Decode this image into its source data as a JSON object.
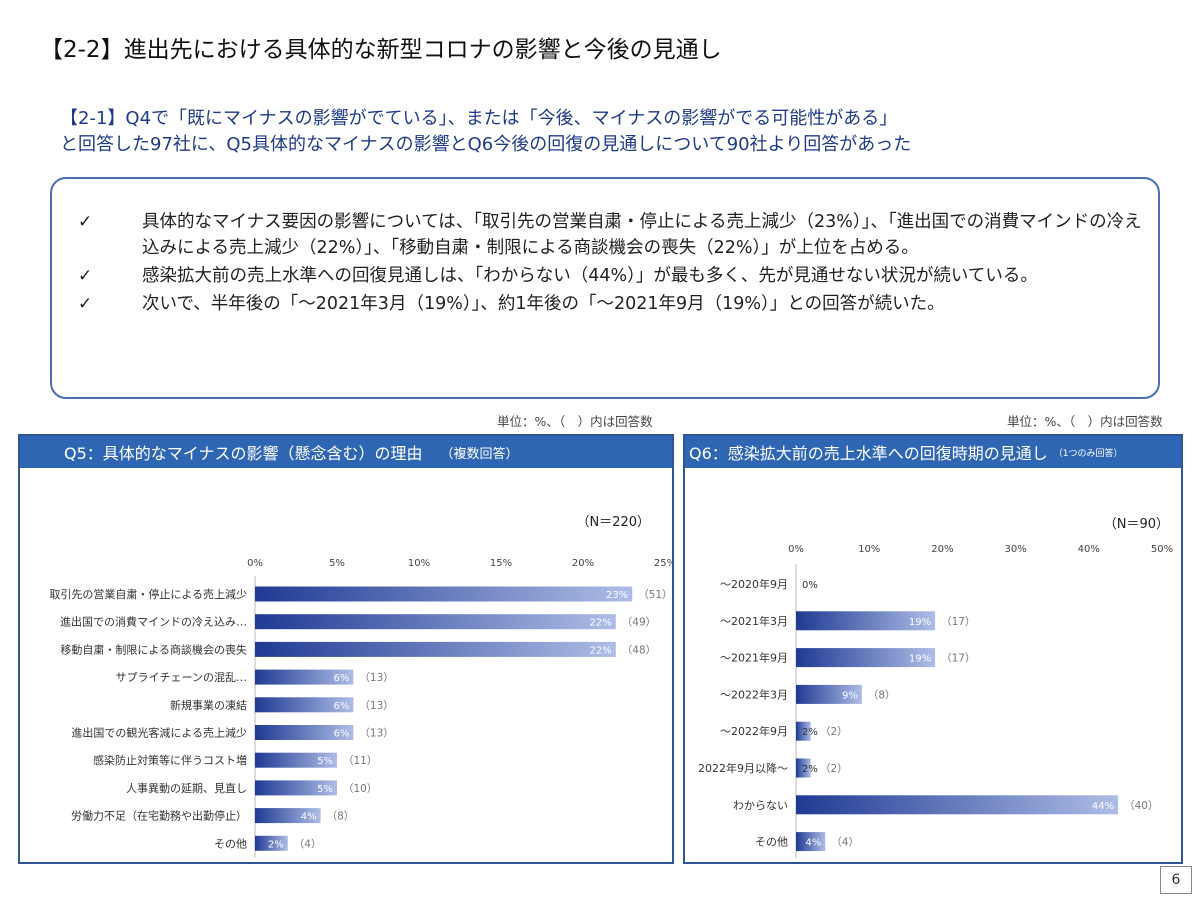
{
  "page": {
    "title": "【2-2】進出先における具体的な新型コロナの影響と今後の見通し",
    "subtitle_line1": "【2-1】Q4で「既にマイナスの影響がでている」、または「今後、マイナスの影響がでる可能性がある」",
    "subtitle_line2": "と回答した97社に、Q5具体的なマイナスの影響とQ6今後の回復の見通しについて90社より回答があった",
    "page_number": "6"
  },
  "summary": {
    "check_mark": "✓",
    "bullets": [
      "具体的なマイナス要因の影響については、「取引先の営業自粛・停止による売上減少（23%）」、「進出国での消費マインドの冷え込みによる売上減少（22%）」、「移動自粛・制限による商談機会の喪失（22%）」が上位を占める。",
      "感染拡大前の売上水準への回復見通しは、「わからない（44%）」が最も多く、先が見通せない状況が続いている。",
      "次いで、半年後の「～2021年3月（19%）」、約1年後の「～2021年9月（19%）」との回答が続いた。"
    ]
  },
  "colors": {
    "bar_dark": "#1f3a93",
    "bar_light": "#aebde6",
    "header_bg": "#2f66b3",
    "border": "#2f5597"
  },
  "chart_data": [
    {
      "type": "bar",
      "orientation": "horizontal",
      "unit_note": "単位：%、（　）内は回答数",
      "title": "Q5：具体的なマイナスの影響（懸念含む）の理由",
      "title_note": "（複数回答）",
      "n_label": "（N＝220）",
      "categories": [
        "取引先の営業自粛・停止による売上減少",
        "進出国での消費マインドの冷え込み…",
        "移動自粛・制限による商談機会の喪失",
        "サプライチェーンの混乱…",
        "新規事業の凍結",
        "進出国での観光客減による売上減少",
        "感染防止対策等に伴うコスト増",
        "人事異動の延期、見直し",
        "労働力不足（在宅勤務や出勤停止）",
        "その他"
      ],
      "values": [
        23,
        22,
        22,
        6,
        6,
        6,
        5,
        5,
        4,
        2
      ],
      "value_labels": [
        "23%",
        "22%",
        "22%",
        "6%",
        "6%",
        "6%",
        "5%",
        "5%",
        "4%",
        "2%"
      ],
      "counts": [
        "（51）",
        "（49）",
        "（48）",
        "（13）",
        "（13）",
        "（13）",
        "（11）",
        "（10）",
        "（8）",
        "（4）"
      ],
      "xlim": [
        0,
        25
      ],
      "ticks": [
        "0%",
        "5%",
        "10%",
        "15%",
        "20%",
        "25%"
      ]
    },
    {
      "type": "bar",
      "orientation": "horizontal",
      "unit_note": "単位：%、（　）内は回答数",
      "title": "Q6：感染拡大前の売上水準への回復時期の見通し",
      "title_note": "（1つのみ回答）",
      "n_label": "（N＝90）",
      "categories": [
        "～2020年9月",
        "～2021年3月",
        "～2021年9月",
        "～2022年3月",
        "～2022年9月",
        "2022年9月以降～",
        "わからない",
        "その他"
      ],
      "values": [
        0,
        19,
        19,
        9,
        2,
        2,
        44,
        4
      ],
      "value_labels": [
        "0%",
        "19%",
        "19%",
        "9%",
        "2%",
        "2%",
        "44%",
        "4%"
      ],
      "counts": [
        "",
        "（17）",
        "（17）",
        "（8）",
        "（2）",
        "（2）",
        "（40）",
        "（4）"
      ],
      "xlim": [
        0,
        50
      ],
      "ticks": [
        "0%",
        "10%",
        "20%",
        "30%",
        "40%",
        "50%"
      ]
    }
  ]
}
